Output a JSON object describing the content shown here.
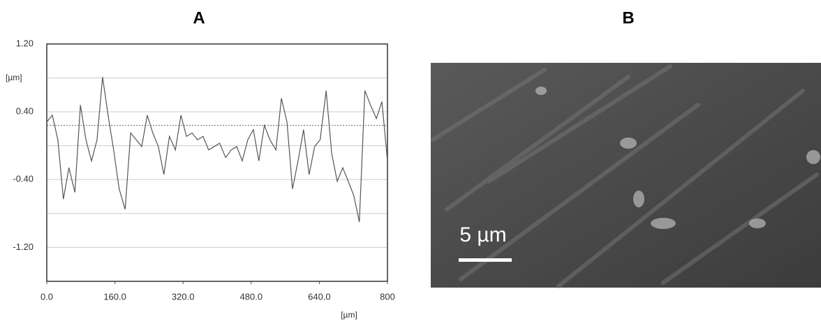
{
  "panels": {
    "A": "A",
    "B": "B"
  },
  "chart_data": {
    "type": "line",
    "x_label": "[µm]",
    "y_label": "[µm]",
    "x": [
      0,
      13,
      26,
      39,
      52,
      66,
      79,
      92,
      105,
      118,
      131,
      144,
      157,
      170,
      184,
      197,
      210,
      223,
      236,
      249,
      262,
      275,
      288,
      302,
      315,
      328,
      341,
      354,
      367,
      380,
      393,
      406,
      420,
      433,
      446,
      459,
      472,
      485,
      498,
      511,
      524,
      538,
      551,
      564,
      577,
      590,
      603,
      616,
      629,
      642,
      656,
      669,
      682,
      695,
      708,
      721,
      734,
      747,
      760,
      774,
      787,
      800
    ],
    "series": [
      {
        "color": "#555555",
        "values": [
          0.28,
          0.36,
          0.07,
          -0.63,
          -0.26,
          -0.55,
          0.48,
          0.07,
          -0.18,
          0.07,
          0.81,
          0.36,
          -0.05,
          -0.51,
          -0.75,
          0.15,
          0.07,
          -0.01,
          0.36,
          0.15,
          -0.01,
          -0.34,
          0.11,
          -0.05,
          0.36,
          0.11,
          0.15,
          0.07,
          0.11,
          -0.05,
          -0.01,
          0.03,
          -0.14,
          -0.05,
          -0.01,
          -0.18,
          0.07,
          0.19,
          -0.18,
          0.24,
          0.07,
          -0.05,
          0.56,
          0.28,
          -0.51,
          -0.18,
          0.19,
          -0.34,
          -0.01,
          0.07,
          0.65,
          -0.09,
          -0.42,
          -0.26,
          -0.42,
          -0.59,
          -0.9,
          0.65,
          0.48,
          0.32,
          0.52,
          -0.18
        ]
      }
    ],
    "xlim": [
      0,
      800
    ],
    "xticks": [
      {
        "value": 0,
        "label": "0.0"
      },
      {
        "value": 160,
        "label": "160.0"
      },
      {
        "value": 320,
        "label": "320.0"
      },
      {
        "value": 480,
        "label": "480.0"
      },
      {
        "value": 640,
        "label": "640.0"
      },
      800
    ],
    "ylim": [
      -1.6,
      1.2
    ],
    "yticks": [
      {
        "value": 1.2,
        "label": "1.20"
      },
      {
        "value": 0.4,
        "label": "0.40"
      },
      {
        "value": -0.4,
        "label": "-0.40"
      },
      {
        "value": -1.2,
        "label": "-1.20"
      }
    ],
    "grid_values": [
      0.8,
      0,
      -0.8
    ],
    "reference_line": 0.24,
    "grid": true
  },
  "image": {
    "scale_bar_label": "5 µm"
  }
}
